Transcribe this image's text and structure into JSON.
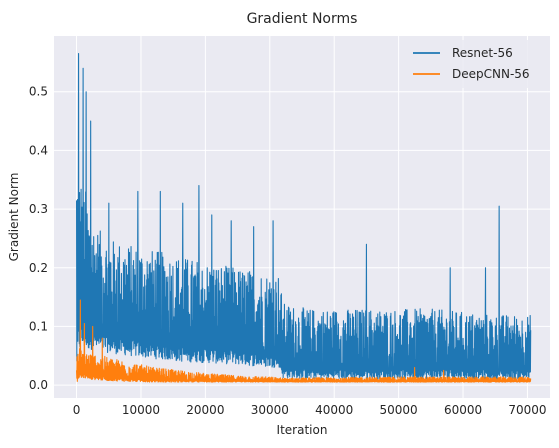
{
  "chart_data": {
    "type": "line",
    "title": "Gradient Norms",
    "xlabel": "Iteration",
    "ylabel": "Gradient Norm",
    "xlim": [
      -3500,
      73500
    ],
    "ylim": [
      -0.022,
      0.595
    ],
    "xticks": [
      0,
      10000,
      20000,
      30000,
      40000,
      50000,
      60000,
      70000
    ],
    "yticks": [
      0.0,
      0.1,
      0.2,
      0.3,
      0.4,
      0.5
    ],
    "grid": true,
    "legend_position": "top-right",
    "series": [
      {
        "name": "Resnet-56",
        "color": "#1f77b4",
        "envelope": {
          "x": [
            0,
            300,
            600,
            1000,
            1500,
            2000,
            3000,
            5000,
            8000,
            12000,
            16000,
            20000,
            25000,
            30000,
            31500,
            32000,
            36000,
            45000,
            55000,
            65000,
            70500
          ],
          "low": [
            0.02,
            0.05,
            0.06,
            0.06,
            0.06,
            0.06,
            0.06,
            0.055,
            0.05,
            0.045,
            0.04,
            0.038,
            0.035,
            0.03,
            0.03,
            0.012,
            0.01,
            0.01,
            0.01,
            0.01,
            0.01
          ],
          "typ_high": [
            0.4,
            0.38,
            0.36,
            0.35,
            0.33,
            0.3,
            0.27,
            0.25,
            0.24,
            0.23,
            0.22,
            0.21,
            0.2,
            0.19,
            0.19,
            0.14,
            0.13,
            0.13,
            0.13,
            0.12,
            0.12
          ]
        },
        "spikes": [
          {
            "x": 300,
            "y": 0.565
          },
          {
            "x": 1000,
            "y": 0.54
          },
          {
            "x": 1500,
            "y": 0.5
          },
          {
            "x": 2200,
            "y": 0.45
          },
          {
            "x": 5000,
            "y": 0.31
          },
          {
            "x": 9500,
            "y": 0.33
          },
          {
            "x": 13000,
            "y": 0.33
          },
          {
            "x": 16500,
            "y": 0.31
          },
          {
            "x": 19000,
            "y": 0.34
          },
          {
            "x": 21000,
            "y": 0.29
          },
          {
            "x": 24000,
            "y": 0.28
          },
          {
            "x": 27500,
            "y": 0.27
          },
          {
            "x": 30500,
            "y": 0.28
          },
          {
            "x": 45000,
            "y": 0.24
          },
          {
            "x": 58000,
            "y": 0.2
          },
          {
            "x": 63500,
            "y": 0.2
          },
          {
            "x": 65600,
            "y": 0.305
          }
        ]
      },
      {
        "name": "DeepCNN-56",
        "color": "#ff7f0e",
        "envelope": {
          "x": [
            0,
            500,
            1000,
            2000,
            4000,
            8000,
            12000,
            16000,
            20000,
            25000,
            30000,
            32000,
            40000,
            50000,
            60000,
            70500
          ],
          "low": [
            0.005,
            0.01,
            0.012,
            0.01,
            0.008,
            0.006,
            0.005,
            0.005,
            0.005,
            0.005,
            0.005,
            0.005,
            0.005,
            0.005,
            0.005,
            0.005
          ],
          "typ_high": [
            0.05,
            0.065,
            0.06,
            0.055,
            0.05,
            0.04,
            0.03,
            0.025,
            0.02,
            0.016,
            0.014,
            0.012,
            0.013,
            0.014,
            0.014,
            0.014
          ]
        },
        "spikes": [
          {
            "x": 600,
            "y": 0.145
          },
          {
            "x": 1200,
            "y": 0.105
          },
          {
            "x": 2500,
            "y": 0.1
          },
          {
            "x": 4000,
            "y": 0.08
          },
          {
            "x": 52500,
            "y": 0.03
          },
          {
            "x": 57000,
            "y": 0.025
          }
        ]
      }
    ]
  }
}
